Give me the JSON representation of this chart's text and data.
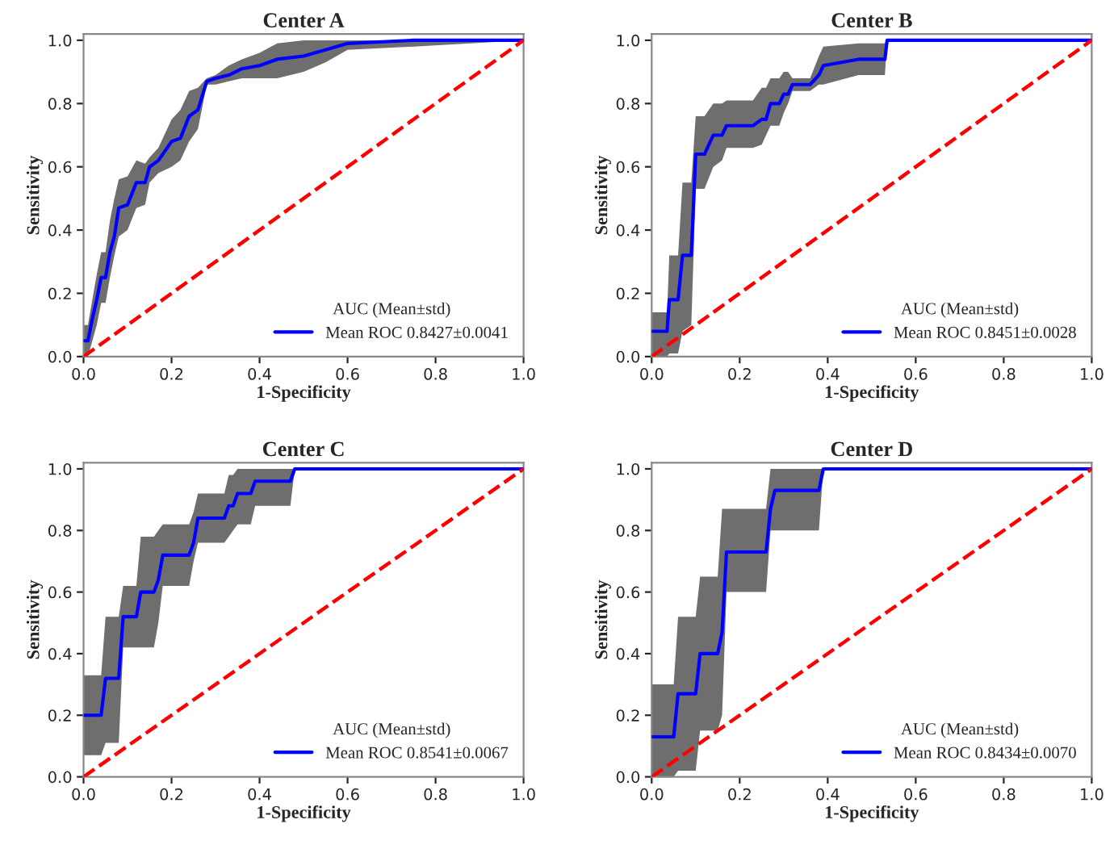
{
  "chart_data": [
    {
      "type": "line",
      "title": "Center A",
      "xlabel": "1-Specificity",
      "ylabel": "Sensitivity",
      "legend_title": "AUC (Mean±std)",
      "legend": "bottom right",
      "grid": false,
      "xlim": [
        0,
        1
      ],
      "ylim": [
        0,
        1.02
      ],
      "xticks": [
        {
          "value": 0,
          "label": "0.0"
        },
        {
          "value": 0.2,
          "label": "0.2"
        },
        {
          "value": 0.4,
          "label": "0.4"
        },
        {
          "value": 0.6,
          "label": "0.6"
        },
        {
          "value": 0.8,
          "label": "0.8"
        },
        {
          "value": 1,
          "label": "1.0"
        }
      ],
      "yticks": [
        {
          "value": 0,
          "label": "0.0"
        },
        {
          "value": 0.2,
          "label": "0.2"
        },
        {
          "value": 0.4,
          "label": "0.4"
        },
        {
          "value": 0.6,
          "label": "0.6"
        },
        {
          "value": 0.8,
          "label": "0.8"
        },
        {
          "value": 1,
          "label": "1.0"
        }
      ],
      "series": [
        {
          "name": "Mean ROC 0.8427±0.0041",
          "color": "#0000ff",
          "line_style": "solid",
          "x": [
            0,
            0.01,
            0.02,
            0.03,
            0.04,
            0.05,
            0.06,
            0.07,
            0.08,
            0.1,
            0.12,
            0.14,
            0.15,
            0.17,
            0.2,
            0.22,
            0.24,
            0.26,
            0.28,
            0.3,
            0.33,
            0.36,
            0.4,
            0.44,
            0.5,
            0.55,
            0.6,
            0.75,
            1.0
          ],
          "values": [
            0.05,
            0.05,
            0.12,
            0.18,
            0.25,
            0.25,
            0.33,
            0.38,
            0.47,
            0.48,
            0.55,
            0.55,
            0.6,
            0.62,
            0.68,
            0.69,
            0.76,
            0.78,
            0.87,
            0.88,
            0.89,
            0.91,
            0.92,
            0.94,
            0.95,
            0.97,
            0.99,
            1.0,
            1.0
          ],
          "lower": [
            0,
            0,
            0.05,
            0.1,
            0.17,
            0.17,
            0.25,
            0.32,
            0.38,
            0.4,
            0.47,
            0.48,
            0.55,
            0.58,
            0.6,
            0.62,
            0.68,
            0.72,
            0.86,
            0.86,
            0.87,
            0.88,
            0.88,
            0.88,
            0.9,
            0.93,
            0.97,
            0.98,
            1.0
          ],
          "upper": [
            0.1,
            0.1,
            0.18,
            0.26,
            0.33,
            0.33,
            0.43,
            0.5,
            0.56,
            0.57,
            0.62,
            0.61,
            0.63,
            0.66,
            0.75,
            0.78,
            0.84,
            0.85,
            0.88,
            0.89,
            0.92,
            0.94,
            0.96,
            0.99,
            1.0,
            1.0,
            1.0,
            1.0,
            1.0
          ]
        },
        {
          "color": "#ff0000",
          "line_style": "dashed",
          "x": [
            0,
            1
          ],
          "values": [
            0,
            1
          ]
        }
      ]
    },
    {
      "type": "line",
      "title": "Center B",
      "xlabel": "1-Specificity",
      "ylabel": "Sensitivity",
      "legend_title": "AUC (Mean±std)",
      "legend": "bottom right",
      "grid": false,
      "xlim": [
        0,
        1
      ],
      "ylim": [
        0,
        1.02
      ],
      "xticks": [
        {
          "value": 0,
          "label": "0.0"
        },
        {
          "value": 0.2,
          "label": "0.2"
        },
        {
          "value": 0.4,
          "label": "0.4"
        },
        {
          "value": 0.6,
          "label": "0.6"
        },
        {
          "value": 0.8,
          "label": "0.8"
        },
        {
          "value": 1,
          "label": "1.0"
        }
      ],
      "yticks": [
        {
          "value": 0,
          "label": "0.0"
        },
        {
          "value": 0.2,
          "label": "0.2"
        },
        {
          "value": 0.4,
          "label": "0.4"
        },
        {
          "value": 0.6,
          "label": "0.6"
        },
        {
          "value": 0.8,
          "label": "0.8"
        },
        {
          "value": 1,
          "label": "1.0"
        }
      ],
      "series": [
        {
          "name": "Mean ROC 0.8451±0.0028",
          "color": "#0000ff",
          "line_style": "solid",
          "x": [
            0,
            0.035,
            0.04,
            0.06,
            0.07,
            0.09,
            0.1,
            0.12,
            0.14,
            0.16,
            0.17,
            0.23,
            0.25,
            0.26,
            0.27,
            0.29,
            0.3,
            0.31,
            0.32,
            0.36,
            0.38,
            0.39,
            0.47,
            0.53,
            0.535,
            1.0
          ],
          "values": [
            0.08,
            0.08,
            0.18,
            0.18,
            0.32,
            0.32,
            0.64,
            0.64,
            0.7,
            0.7,
            0.73,
            0.73,
            0.75,
            0.75,
            0.8,
            0.8,
            0.83,
            0.83,
            0.86,
            0.86,
            0.89,
            0.92,
            0.94,
            0.94,
            1.0,
            1.0
          ],
          "lower": [
            0,
            0,
            0.01,
            0.01,
            0.08,
            0.1,
            0.53,
            0.53,
            0.6,
            0.62,
            0.66,
            0.66,
            0.67,
            0.7,
            0.73,
            0.73,
            0.77,
            0.8,
            0.84,
            0.84,
            0.86,
            0.86,
            0.89,
            0.89,
            1.0,
            1.0
          ],
          "upper": [
            0.14,
            0.14,
            0.32,
            0.32,
            0.55,
            0.55,
            0.76,
            0.76,
            0.8,
            0.8,
            0.81,
            0.81,
            0.85,
            0.85,
            0.88,
            0.88,
            0.9,
            0.9,
            0.88,
            0.88,
            0.95,
            0.98,
            0.99,
            0.99,
            1.0,
            1.0
          ]
        },
        {
          "color": "#ff0000",
          "line_style": "dashed",
          "x": [
            0,
            1
          ],
          "values": [
            0,
            1
          ]
        }
      ]
    },
    {
      "type": "line",
      "title": "Center C",
      "xlabel": "1-Specificity",
      "ylabel": "Sensitivity",
      "legend_title": "AUC (Mean±std)",
      "legend": "bottom right",
      "grid": false,
      "xlim": [
        0,
        1
      ],
      "ylim": [
        0,
        1.02
      ],
      "xticks": [
        {
          "value": 0,
          "label": "0.0"
        },
        {
          "value": 0.2,
          "label": "0.2"
        },
        {
          "value": 0.4,
          "label": "0.4"
        },
        {
          "value": 0.6,
          "label": "0.6"
        },
        {
          "value": 0.8,
          "label": "0.8"
        },
        {
          "value": 1,
          "label": "1.0"
        }
      ],
      "yticks": [
        {
          "value": 0,
          "label": "0.0"
        },
        {
          "value": 0.2,
          "label": "0.2"
        },
        {
          "value": 0.4,
          "label": "0.4"
        },
        {
          "value": 0.6,
          "label": "0.6"
        },
        {
          "value": 0.8,
          "label": "0.8"
        },
        {
          "value": 1,
          "label": "1.0"
        }
      ],
      "series": [
        {
          "name": "Mean ROC 0.8541±0.0067",
          "color": "#0000ff",
          "line_style": "solid",
          "x": [
            0,
            0.04,
            0.05,
            0.08,
            0.09,
            0.12,
            0.13,
            0.16,
            0.17,
            0.18,
            0.24,
            0.25,
            0.26,
            0.32,
            0.33,
            0.34,
            0.35,
            0.38,
            0.39,
            0.47,
            0.48,
            1.0
          ],
          "values": [
            0.2,
            0.2,
            0.32,
            0.32,
            0.52,
            0.52,
            0.6,
            0.6,
            0.64,
            0.72,
            0.72,
            0.76,
            0.84,
            0.84,
            0.88,
            0.88,
            0.92,
            0.92,
            0.96,
            0.96,
            1.0,
            1.0
          ],
          "lower": [
            0.07,
            0.07,
            0.11,
            0.11,
            0.42,
            0.42,
            0.42,
            0.42,
            0.5,
            0.62,
            0.62,
            0.7,
            0.76,
            0.76,
            0.78,
            0.8,
            0.82,
            0.82,
            0.88,
            0.88,
            1.0,
            1.0
          ],
          "upper": [
            0.33,
            0.33,
            0.52,
            0.52,
            0.62,
            0.62,
            0.78,
            0.78,
            0.8,
            0.82,
            0.82,
            0.86,
            0.92,
            0.92,
            0.98,
            0.98,
            1.0,
            1.0,
            1.0,
            1.0,
            1.0,
            1.0
          ]
        },
        {
          "color": "#ff0000",
          "line_style": "dashed",
          "x": [
            0,
            1
          ],
          "values": [
            0,
            1
          ]
        }
      ]
    },
    {
      "type": "line",
      "title": "Center D",
      "xlabel": "1-Specificity",
      "ylabel": "Sensitivity",
      "legend_title": "AUC (Mean±std)",
      "legend": "bottom right",
      "grid": false,
      "xlim": [
        0,
        1
      ],
      "ylim": [
        0,
        1.02
      ],
      "xticks": [
        {
          "value": 0,
          "label": "0.0"
        },
        {
          "value": 0.2,
          "label": "0.2"
        },
        {
          "value": 0.4,
          "label": "0.4"
        },
        {
          "value": 0.6,
          "label": "0.6"
        },
        {
          "value": 0.8,
          "label": "0.8"
        },
        {
          "value": 1,
          "label": "1.0"
        }
      ],
      "yticks": [
        {
          "value": 0,
          "label": "0.0"
        },
        {
          "value": 0.2,
          "label": "0.2"
        },
        {
          "value": 0.4,
          "label": "0.4"
        },
        {
          "value": 0.6,
          "label": "0.6"
        },
        {
          "value": 0.8,
          "label": "0.8"
        },
        {
          "value": 1,
          "label": "1.0"
        }
      ],
      "series": [
        {
          "name": "Mean ROC 0.8434±0.0070",
          "color": "#0000ff",
          "line_style": "solid",
          "x": [
            0,
            0.05,
            0.06,
            0.1,
            0.11,
            0.15,
            0.16,
            0.17,
            0.26,
            0.27,
            0.28,
            0.38,
            0.39,
            1.0
          ],
          "values": [
            0.13,
            0.13,
            0.27,
            0.27,
            0.4,
            0.4,
            0.47,
            0.73,
            0.73,
            0.87,
            0.93,
            0.93,
            1.0,
            1.0
          ],
          "lower": [
            0,
            0,
            0.02,
            0.02,
            0.15,
            0.15,
            0.2,
            0.6,
            0.6,
            0.8,
            0.8,
            0.8,
            1.0,
            1.0
          ],
          "upper": [
            0.3,
            0.3,
            0.52,
            0.52,
            0.65,
            0.65,
            0.87,
            0.87,
            0.87,
            1.0,
            1.0,
            1.0,
            1.0,
            1.0
          ]
        },
        {
          "color": "#ff0000",
          "line_style": "dashed",
          "x": [
            0,
            1
          ],
          "values": [
            0,
            1
          ]
        }
      ]
    }
  ]
}
